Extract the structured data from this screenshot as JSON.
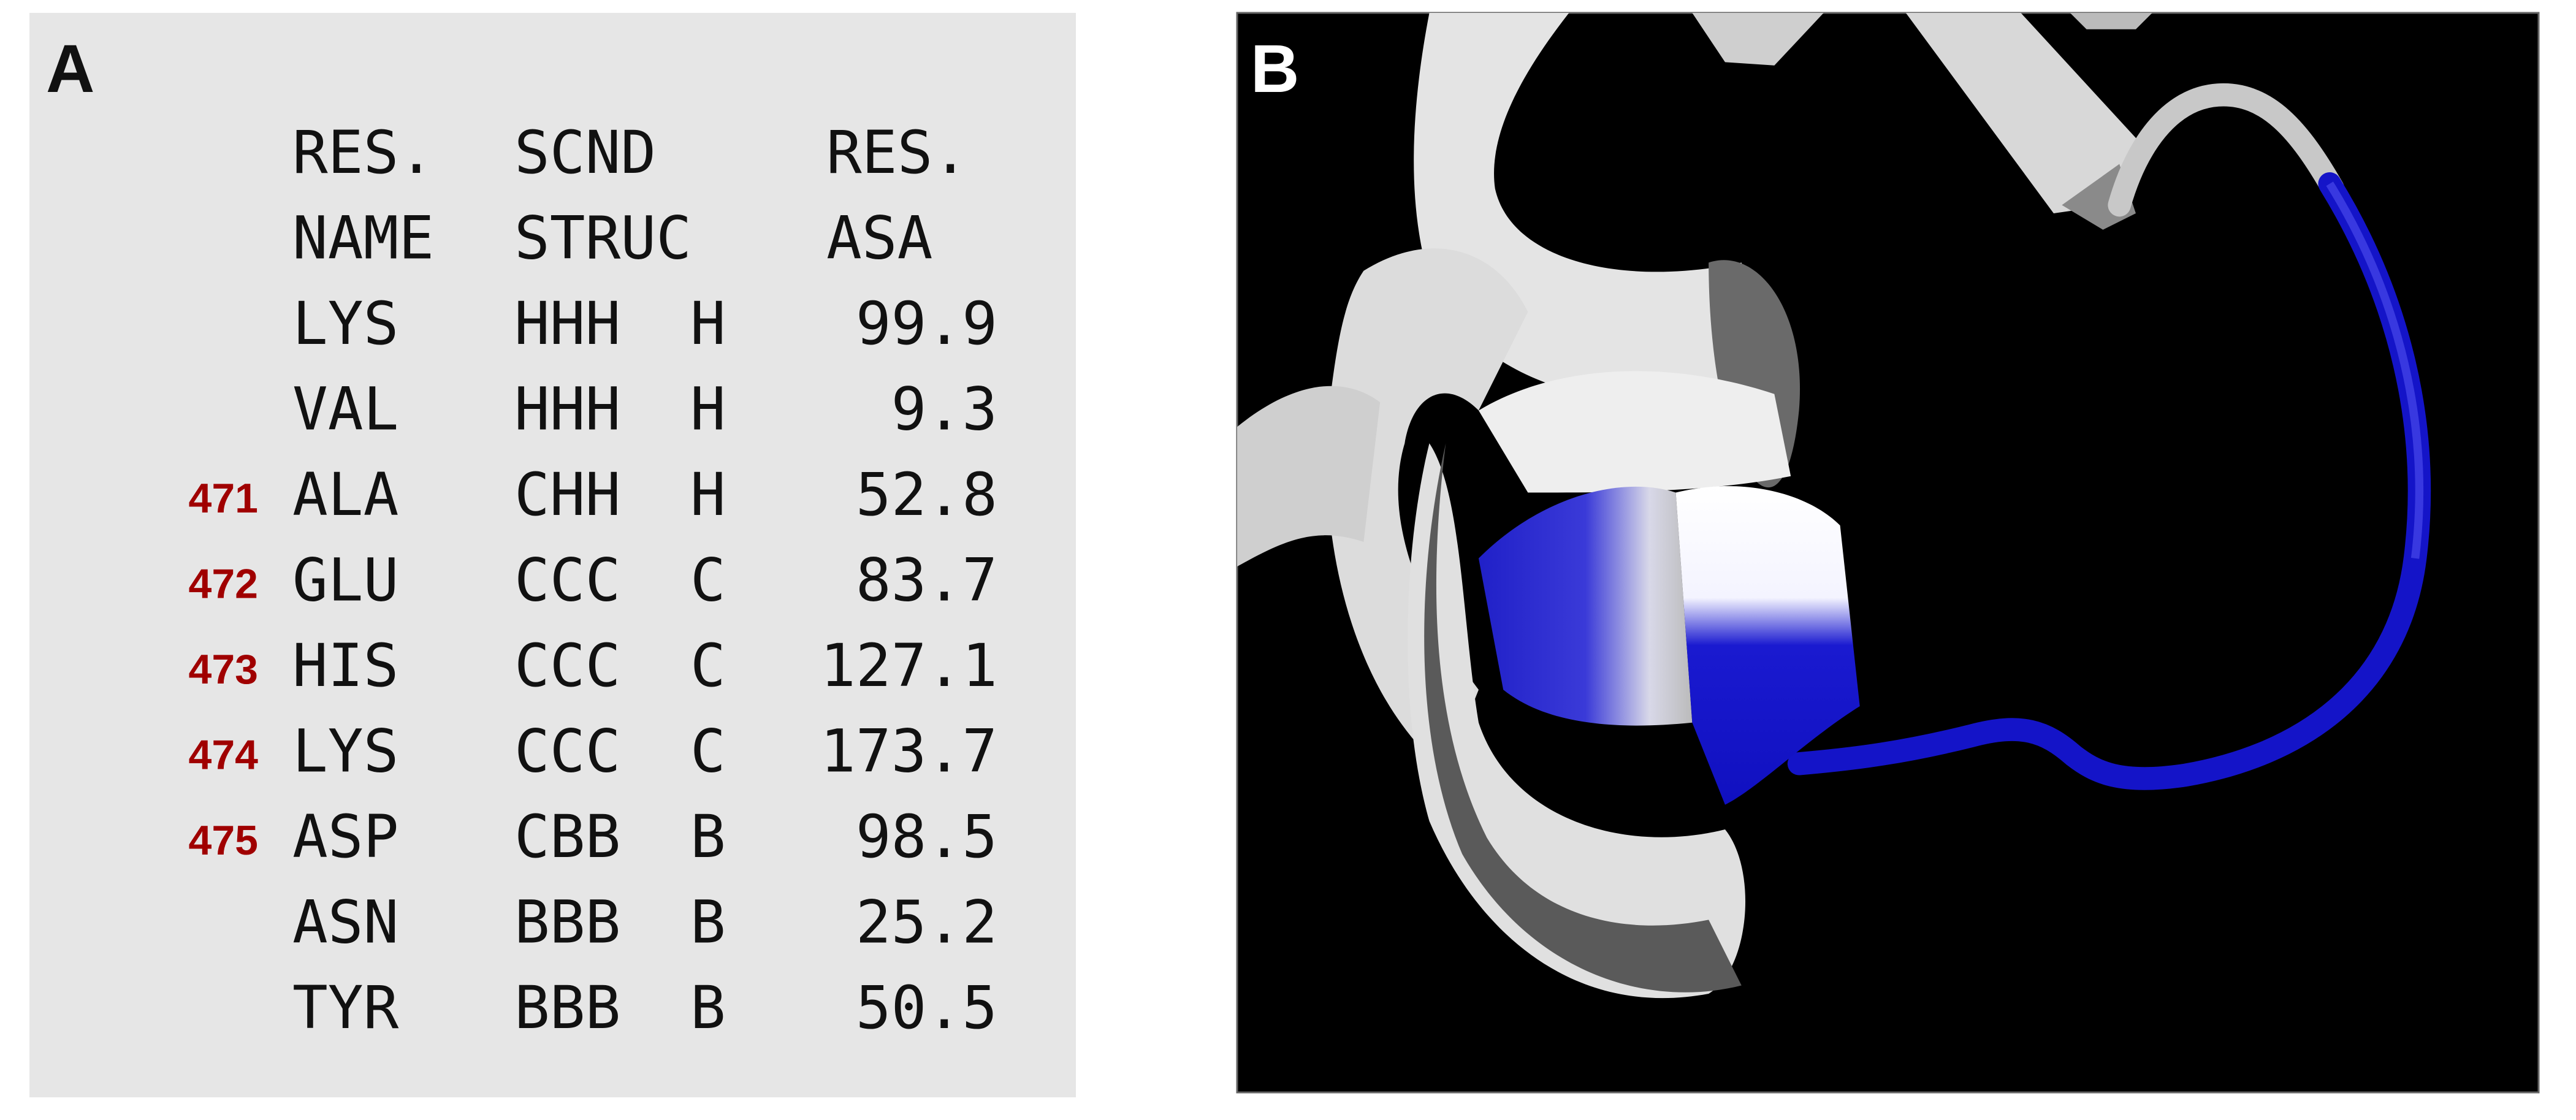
{
  "panel_a": {
    "label": "A",
    "header": [
      [
        "RES.",
        "SCND",
        "RES."
      ],
      [
        "NAME",
        "STRUC",
        "ASA"
      ]
    ],
    "rows": [
      {
        "number": null,
        "name": "LYS",
        "scnd": "HHH",
        "struc": "H",
        "asa": 99.9
      },
      {
        "number": null,
        "name": "VAL",
        "scnd": "HHH",
        "struc": "H",
        "asa": 9.3
      },
      {
        "number": 471,
        "name": "ALA",
        "scnd": "CHH",
        "struc": "H",
        "asa": 52.8
      },
      {
        "number": 472,
        "name": "GLU",
        "scnd": "CCC",
        "struc": "C",
        "asa": 83.7
      },
      {
        "number": 473,
        "name": "HIS",
        "scnd": "CCC",
        "struc": "C",
        "asa": 127.1
      },
      {
        "number": 474,
        "name": "LYS",
        "scnd": "CCC",
        "struc": "C",
        "asa": 173.7
      },
      {
        "number": 475,
        "name": "ASP",
        "scnd": "CBB",
        "struc": "B",
        "asa": 98.5
      },
      {
        "number": null,
        "name": "ASN",
        "scnd": "BBB",
        "struc": "B",
        "asa": 25.2
      },
      {
        "number": null,
        "name": "TYR",
        "scnd": "BBB",
        "struc": "B",
        "asa": 50.5
      }
    ]
  },
  "panel_b": {
    "label": "B"
  }
}
